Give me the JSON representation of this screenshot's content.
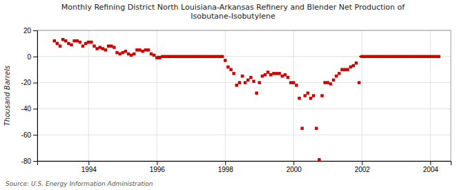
{
  "chart_data": {
    "type": "scatter",
    "title": "Monthly Refining District North Louisiana-Arkansas Refinery and Blender Net Production of\nIsobutane-Isobutylene",
    "y_label": "Thousand Barrels",
    "source": "Source: U.S. Energy Information Administration",
    "color": "#cc0000",
    "marker": "square",
    "grid": true,
    "xlim": [
      1992.5,
      2004.6
    ],
    "xticks": [
      1994,
      1996,
      1998,
      2000,
      2002,
      2004
    ],
    "ylim": [
      -80,
      20
    ],
    "yticks": [
      -80,
      -60,
      -40,
      -20,
      0,
      20
    ],
    "x": [
      1993.0,
      1993.083,
      1993.167,
      1993.25,
      1993.333,
      1993.417,
      1993.5,
      1993.583,
      1993.667,
      1993.75,
      1993.833,
      1993.917,
      1994.0,
      1994.083,
      1994.167,
      1994.25,
      1994.333,
      1994.417,
      1994.5,
      1994.583,
      1994.667,
      1994.75,
      1994.833,
      1994.917,
      1995.0,
      1995.083,
      1995.167,
      1995.25,
      1995.333,
      1995.417,
      1995.5,
      1995.583,
      1995.667,
      1995.75,
      1995.833,
      1995.917,
      1996.0,
      1996.083,
      1996.167,
      1996.25,
      1996.333,
      1996.417,
      1996.5,
      1996.583,
      1996.667,
      1996.75,
      1996.833,
      1996.917,
      1997.0,
      1997.083,
      1997.167,
      1997.25,
      1997.333,
      1997.417,
      1997.5,
      1997.583,
      1997.667,
      1997.75,
      1997.833,
      1997.917,
      1998.0,
      1998.083,
      1998.167,
      1998.25,
      1998.333,
      1998.417,
      1998.5,
      1998.583,
      1998.667,
      1998.75,
      1998.833,
      1998.917,
      1999.0,
      1999.083,
      1999.167,
      1999.25,
      1999.333,
      1999.417,
      1999.5,
      1999.583,
      1999.667,
      1999.75,
      1999.833,
      1999.917,
      2000.0,
      2000.083,
      2000.167,
      2000.25,
      2000.333,
      2000.417,
      2000.5,
      2000.583,
      2000.667,
      2000.75,
      2000.833,
      2000.917,
      2001.0,
      2001.083,
      2001.167,
      2001.25,
      2001.333,
      2001.417,
      2001.5,
      2001.583,
      2001.667,
      2001.75,
      2001.833,
      2001.917,
      2002.0,
      2002.083,
      2002.167,
      2002.25,
      2002.333,
      2002.417,
      2002.5,
      2002.583,
      2002.667,
      2002.75,
      2002.833,
      2002.917,
      2003.0,
      2003.083,
      2003.167,
      2003.25,
      2003.333,
      2003.417,
      2003.5,
      2003.583,
      2003.667,
      2003.75,
      2003.833,
      2003.917,
      2004.0,
      2004.083,
      2004.167,
      2004.25
    ],
    "values": [
      12,
      10,
      8,
      13,
      12,
      10,
      9,
      12,
      12,
      11,
      8,
      10,
      11,
      11,
      8,
      6,
      7,
      6,
      5,
      8,
      8,
      7,
      3,
      2,
      3,
      4,
      2,
      1,
      2,
      5,
      5,
      4,
      5,
      5,
      2,
      1,
      -1,
      -1,
      0,
      0,
      0,
      0,
      0,
      0,
      0,
      0,
      0,
      0,
      0,
      0,
      0,
      0,
      0,
      0,
      0,
      0,
      0,
      0,
      0,
      0,
      -3,
      -8,
      -10,
      -13,
      -22,
      -20,
      -15,
      -20,
      -18,
      -16,
      -19,
      -28,
      -20,
      -15,
      -14,
      -12,
      -14,
      -13,
      -13,
      -13,
      -15,
      -14,
      -16,
      -20,
      -20,
      -22,
      -32,
      -55,
      -30,
      -28,
      -32,
      -30,
      -55,
      -79,
      -30,
      -20,
      -20,
      -21,
      -18,
      -15,
      -13,
      -10,
      -10,
      -10,
      -8,
      -7,
      -5,
      -20,
      0,
      0,
      0,
      0,
      0,
      0,
      0,
      0,
      0,
      0,
      0,
      0,
      0,
      0,
      0,
      0,
      0,
      0,
      0,
      0,
      0,
      0,
      0,
      0,
      0,
      0,
      0,
      0
    ],
    "line_segments": [
      {
        "x": [
          1996.0,
          1997.917
        ],
        "y": [
          0,
          0
        ]
      },
      {
        "x": [
          2001.917,
          2004.25
        ],
        "y": [
          0,
          0
        ]
      }
    ]
  }
}
